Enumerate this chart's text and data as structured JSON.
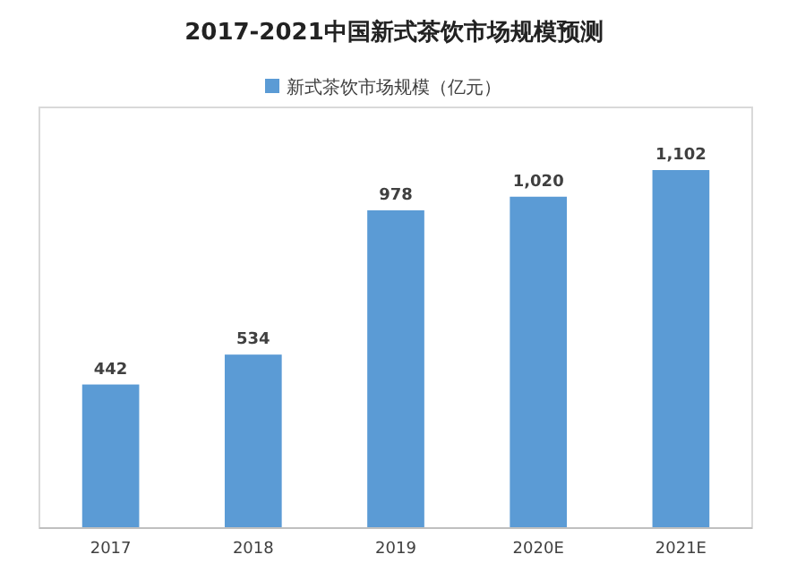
{
  "chart_data": {
    "type": "bar",
    "title": "2017-2021中国新式茶饮市场规模预测",
    "categories": [
      "2017",
      "2018",
      "2019",
      "2020E",
      "2021E"
    ],
    "series": [
      {
        "name": "新式茶饮市场规模（亿元）",
        "color": "#5b9bd5",
        "values": [
          442,
          534,
          978,
          1020,
          1102
        ],
        "value_labels": [
          "442",
          "534",
          "978",
          "1,020",
          "1,102"
        ]
      }
    ],
    "legend": "top"
  }
}
